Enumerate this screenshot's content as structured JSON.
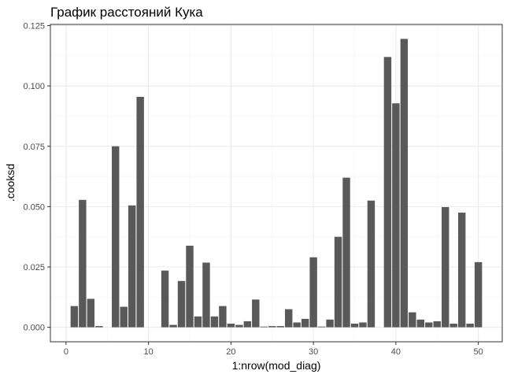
{
  "chart_data": {
    "type": "bar",
    "title": "График расстояний Кука",
    "xlabel": "1:nrow(mod_diag)",
    "ylabel": ".cooksd",
    "xlim": [
      -1.9,
      52.9
    ],
    "ylim": [
      -0.006,
      0.1255
    ],
    "x_ticks": [
      0,
      10,
      20,
      30,
      40,
      50
    ],
    "x_tick_labels": [
      "0",
      "10",
      "20",
      "30",
      "40",
      "50"
    ],
    "y_ticks": [
      0,
      0.025,
      0.05,
      0.075,
      0.1,
      0.125
    ],
    "y_tick_labels": [
      "0.000",
      "0.025",
      "0.050",
      "0.075",
      "0.100",
      "0.125"
    ],
    "grid": true,
    "bar_color": "#595959",
    "x": [
      1,
      2,
      3,
      4,
      5,
      6,
      7,
      8,
      9,
      10,
      11,
      12,
      13,
      14,
      15,
      16,
      17,
      18,
      19,
      20,
      21,
      22,
      23,
      24,
      25,
      26,
      27,
      28,
      29,
      30,
      31,
      32,
      33,
      34,
      35,
      36,
      37,
      38,
      39,
      40,
      41,
      42,
      43,
      44,
      45,
      46,
      47,
      48,
      49,
      50
    ],
    "values": [
      0.0088,
      0.0528,
      0.0118,
      0.0005,
      0.0,
      0.075,
      0.0085,
      0.0505,
      0.0955,
      0.0,
      0.0,
      0.0235,
      0.001,
      0.0192,
      0.0338,
      0.0045,
      0.0268,
      0.0045,
      0.0088,
      0.0015,
      0.001,
      0.0025,
      0.0115,
      0.0003,
      0.0005,
      0.0005,
      0.0075,
      0.002,
      0.0035,
      0.029,
      0.0003,
      0.0032,
      0.0375,
      0.062,
      0.0015,
      0.002,
      0.0525,
      0.0,
      0.112,
      0.0928,
      0.1195,
      0.0062,
      0.0032,
      0.002,
      0.0025,
      0.0498,
      0.0015,
      0.0475,
      0.0015,
      0.027
    ]
  }
}
